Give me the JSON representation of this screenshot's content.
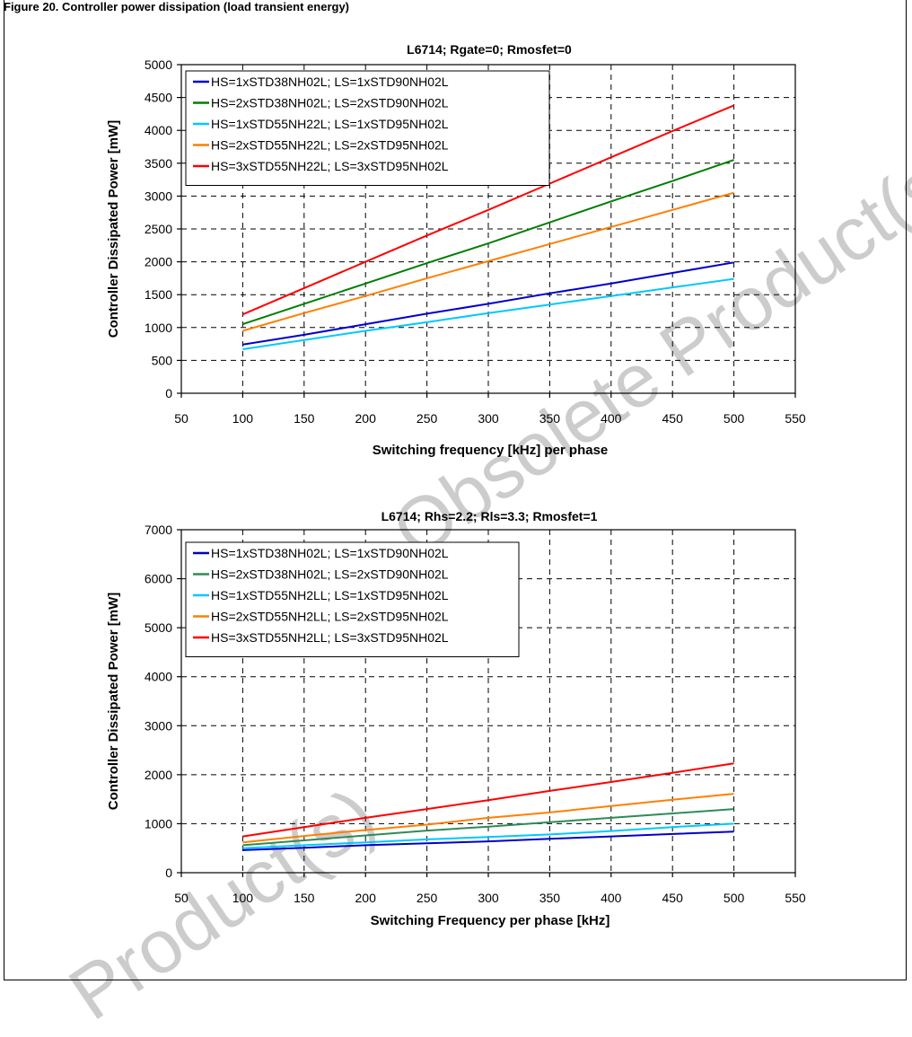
{
  "header": {
    "text": "Figure 20. Controller power dissipation (load transient energy)"
  },
  "watermarks": [
    "Obsolete Product(s)",
    "Product(s)"
  ],
  "chart_data": [
    {
      "type": "line",
      "title": "L6714; Rgate=0; Rmosfet=0",
      "xlabel": "Switching frequency [kHz] per phase",
      "ylabel": "Controller Dissipated Power [mW]",
      "xlim": [
        50,
        550
      ],
      "ylim": [
        0,
        5000
      ],
      "xticks": [
        50,
        100,
        150,
        200,
        250,
        300,
        350,
        400,
        450,
        500,
        550
      ],
      "yticks": [
        0,
        500,
        1000,
        1500,
        2000,
        2500,
        3000,
        3500,
        4000,
        4500,
        5000
      ],
      "grid": true,
      "legend_position": "top-left",
      "x": [
        100,
        150,
        200,
        250,
        300,
        350,
        400,
        450,
        500
      ],
      "series": [
        {
          "name": "HS=1xSTD38NH02L; LS=1xSTD90NH02L",
          "color": "#0000cc",
          "values": [
            740,
            890,
            1050,
            1210,
            1360,
            1520,
            1670,
            1830,
            1990
          ]
        },
        {
          "name": "HS=2xSTD38NH02L; LS=2xSTD90NH02L",
          "color": "#007f00",
          "values": [
            1050,
            1360,
            1670,
            1980,
            2280,
            2600,
            2920,
            3230,
            3550
          ]
        },
        {
          "name": "HS=1xSTD55NH22L; LS=1xSTD95NH02L",
          "color": "#00c8ff",
          "values": [
            670,
            810,
            950,
            1080,
            1220,
            1350,
            1480,
            1610,
            1740
          ]
        },
        {
          "name": "HS=2xSTD55NH22L; LS=2xSTD95NH02L",
          "color": "#ff7f00",
          "values": [
            950,
            1220,
            1480,
            1750,
            2010,
            2270,
            2530,
            2790,
            3050
          ]
        },
        {
          "name": "HS=3xSTD55NH22L; LS=3xSTD95NH02L",
          "color": "#ff0000",
          "values": [
            1200,
            1600,
            2000,
            2400,
            2790,
            3190,
            3590,
            3990,
            4380
          ]
        }
      ]
    },
    {
      "type": "line",
      "title": "L6714; Rhs=2.2; Rls=3.3; Rmosfet=1",
      "xlabel": "Switching Frequency per phase [kHz]",
      "ylabel": "Controller Dissipated Power [mW]",
      "xlim": [
        50,
        550
      ],
      "ylim": [
        0,
        7000
      ],
      "xticks": [
        50,
        100,
        150,
        200,
        250,
        300,
        350,
        400,
        450,
        500,
        550
      ],
      "yticks": [
        0,
        1000,
        2000,
        3000,
        4000,
        5000,
        6000,
        7000
      ],
      "grid": true,
      "legend_position": "top-left",
      "x": [
        100,
        150,
        200,
        250,
        300,
        350,
        400,
        450,
        500
      ],
      "series": [
        {
          "name": "HS=1xSTD38NH02L; LS=1xSTD90NH02L",
          "color": "#0000cc",
          "values": [
            460,
            510,
            560,
            600,
            640,
            690,
            740,
            790,
            840
          ]
        },
        {
          "name": "HS=2xSTD38NH02L; LS=2xSTD90NH02L",
          "color": "#2e8b57",
          "values": [
            560,
            660,
            760,
            860,
            940,
            1030,
            1120,
            1210,
            1300
          ]
        },
        {
          "name": "HS=1xSTD55NH2LL; LS=1xSTD95NH02L",
          "color": "#00c8ff",
          "values": [
            500,
            560,
            620,
            680,
            730,
            780,
            850,
            930,
            1000
          ]
        },
        {
          "name": "HS=2xSTD55NH2LL; LS=2xSTD95NH02L",
          "color": "#ff7f00",
          "values": [
            620,
            750,
            870,
            980,
            1120,
            1230,
            1360,
            1490,
            1610
          ]
        },
        {
          "name": "HS=3xSTD55NH2LL; LS=3xSTD95NH02L",
          "color": "#ff0000",
          "values": [
            740,
            930,
            1120,
            1300,
            1480,
            1670,
            1850,
            2040,
            2230
          ]
        }
      ]
    }
  ]
}
